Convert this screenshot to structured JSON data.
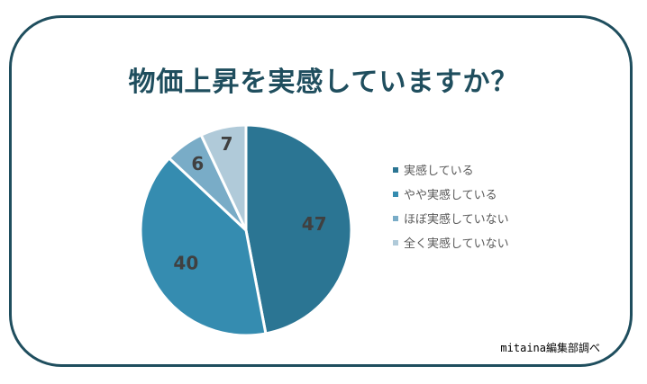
{
  "title": "物価上昇を実感していますか？",
  "source": "mitaina編集部調べ",
  "chart_data": {
    "type": "pie",
    "title": "物価上昇を実感していますか？",
    "categories": [
      "実感している",
      "やや実感している",
      "ほぼ実感していない",
      "全く実感していない"
    ],
    "values": [
      47,
      40,
      6,
      7
    ],
    "colors": [
      "#2b7593",
      "#358cb0",
      "#79acc7",
      "#b0cad9"
    ],
    "start_angle_deg": 0,
    "direction": "clockwise",
    "legend_placement": "right"
  }
}
